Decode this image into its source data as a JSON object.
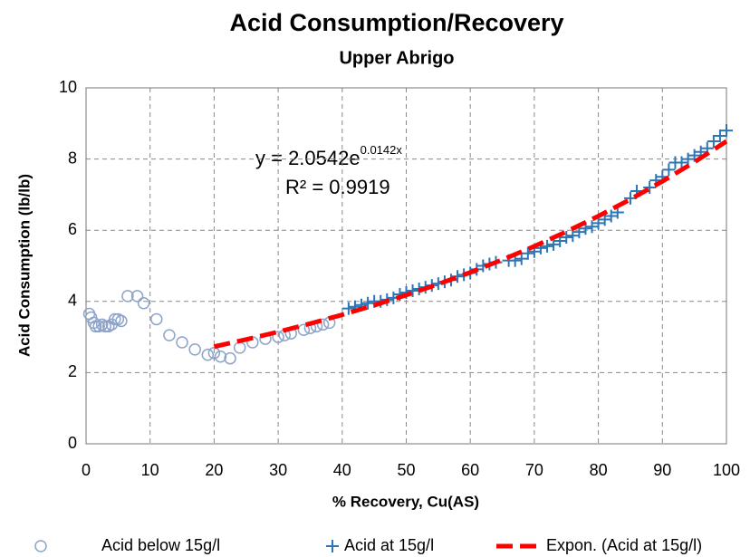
{
  "chart_data": {
    "type": "scatter",
    "title": "Acid Consumption/Recovery",
    "subtitle": "Upper Abrigo",
    "x_label": "% Recovery, Cu(AS)",
    "y_label": "Acid Consumption (lb/lb)",
    "annotations": [
      "y = 2.0542e",
      "0.0142x",
      "R² = 0.9919"
    ],
    "xlim": [
      0,
      100
    ],
    "ylim": [
      0,
      10
    ],
    "xticks": [
      0,
      10,
      20,
      30,
      40,
      50,
      60,
      70,
      80,
      90,
      100
    ],
    "yticks": [
      0,
      2,
      4,
      6,
      8,
      10
    ],
    "grid": true,
    "legend": "bottom",
    "series": [
      {
        "name": "Acid below 15g/l",
        "color": "#8ea3c8",
        "marker": "circle",
        "x": [
          0.5,
          0.8,
          1.2,
          1.5,
          2,
          2.5,
          3,
          3.5,
          4,
          4.5,
          5,
          5.5,
          6.5,
          8,
          9,
          11,
          13,
          15,
          17,
          19,
          20,
          21,
          22.5,
          24,
          26,
          28,
          30,
          31,
          32,
          34,
          35,
          36,
          37,
          38
        ],
        "values": [
          3.65,
          3.55,
          3.4,
          3.3,
          3.3,
          3.35,
          3.3,
          3.3,
          3.35,
          3.5,
          3.5,
          3.45,
          4.15,
          4.15,
          3.95,
          3.5,
          3.05,
          2.85,
          2.65,
          2.5,
          2.55,
          2.45,
          2.4,
          2.7,
          2.85,
          2.95,
          3.0,
          3.05,
          3.1,
          3.2,
          3.25,
          3.3,
          3.35,
          3.4
        ]
      },
      {
        "name": "Acid at 15g/l",
        "color": "#2e75b6",
        "marker": "plus",
        "x": [
          41,
          42,
          43,
          44,
          45,
          46,
          47,
          48,
          49,
          50,
          51,
          52,
          53,
          54,
          55,
          56,
          57,
          58,
          59,
          60,
          61,
          62,
          63,
          64,
          66,
          67,
          68,
          69,
          70,
          71,
          72,
          73,
          74,
          75,
          76,
          77,
          78,
          79,
          80,
          81,
          82,
          83,
          85,
          86,
          88,
          89,
          90,
          91,
          92,
          93,
          94,
          95,
          96,
          97,
          98,
          99,
          100
        ],
        "values": [
          3.8,
          3.85,
          3.9,
          3.95,
          4.0,
          4.0,
          4.05,
          4.1,
          4.2,
          4.25,
          4.3,
          4.35,
          4.4,
          4.45,
          4.5,
          4.55,
          4.6,
          4.7,
          4.75,
          4.8,
          4.9,
          5.0,
          5.05,
          5.1,
          5.15,
          5.15,
          5.2,
          5.35,
          5.4,
          5.5,
          5.55,
          5.6,
          5.7,
          5.8,
          5.85,
          5.95,
          6.05,
          6.1,
          6.2,
          6.3,
          6.4,
          6.5,
          6.9,
          7.1,
          7.2,
          7.4,
          7.5,
          7.7,
          7.9,
          7.9,
          8.0,
          8.1,
          8.2,
          8.3,
          8.5,
          8.65,
          8.8
        ]
      },
      {
        "name": "Expon. (Acid at 15g/l)",
        "color": "#ff0000",
        "marker": "dashed-line",
        "x": [
          20,
          25,
          30,
          35,
          40,
          45,
          50,
          55,
          60,
          65,
          70,
          75,
          80,
          85,
          90,
          95,
          100
        ],
        "values": [
          2.729,
          2.93,
          3.145,
          3.377,
          3.625,
          3.892,
          4.178,
          4.486,
          4.816,
          5.17,
          5.55,
          5.959,
          6.397,
          6.868,
          7.374,
          7.916,
          8.498
        ]
      }
    ]
  }
}
